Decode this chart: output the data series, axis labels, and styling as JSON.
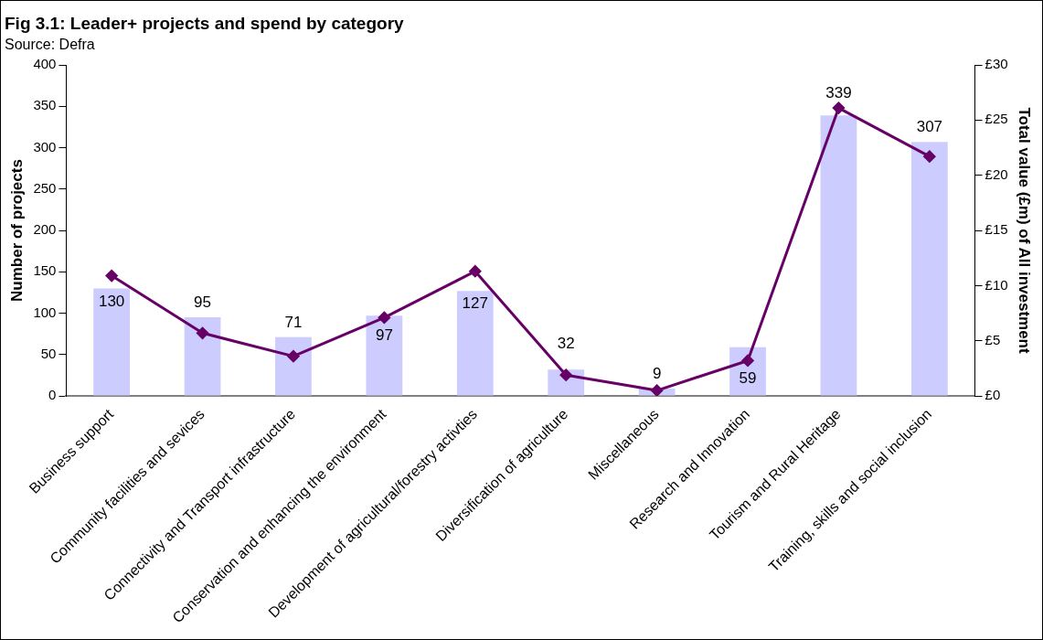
{
  "chart_data": {
    "type": "bar",
    "title": "Fig 3.1: Leader+ projects and spend by category",
    "subtitle": "Source: Defra",
    "ylabel": "Number of projects",
    "y2label": "Total value (£m) of All investment",
    "categories": [
      "Business support",
      "Community facilities and sevices",
      "Connectivity and Transport infrastructure",
      "Conservation and enhancing the environment",
      "Development of agricultural/forestry activties",
      "Diversification of agriculture",
      "Miscellaneous",
      "Research and Innovation",
      "Tourism and Rural Heritage",
      "Training, skills and social inclusion"
    ],
    "series": [
      {
        "color": "#ccccff",
        "values": [
          130,
          95,
          71,
          97,
          127,
          32,
          9,
          59,
          339,
          307
        ],
        "value_labels": [
          "130",
          "95",
          "71",
          "97",
          "127",
          "32",
          "9",
          "59",
          "339",
          "307"
        ]
      },
      {
        "type": "line",
        "axis": "y2",
        "color": "#660066",
        "marker": "diamond",
        "line_style": "solid",
        "values": [
          10.9,
          5.7,
          3.6,
          7.1,
          11.3,
          1.9,
          0.5,
          3.2,
          26.1,
          21.7
        ]
      }
    ],
    "ylim": [
      0,
      400
    ],
    "yticks": [
      0,
      50,
      100,
      150,
      200,
      250,
      300,
      350,
      400
    ],
    "y2lim": [
      0,
      30
    ],
    "y2ticks": [
      {
        "value": 0,
        "label": "£0"
      },
      {
        "value": 5,
        "label": "£5"
      },
      {
        "value": 10,
        "label": "£10"
      },
      {
        "value": 15,
        "label": "£15"
      },
      {
        "value": 20,
        "label": "£20"
      },
      {
        "value": 25,
        "label": "£25"
      },
      {
        "value": 30,
        "label": "£30"
      }
    ],
    "grid": false,
    "legend": false
  }
}
